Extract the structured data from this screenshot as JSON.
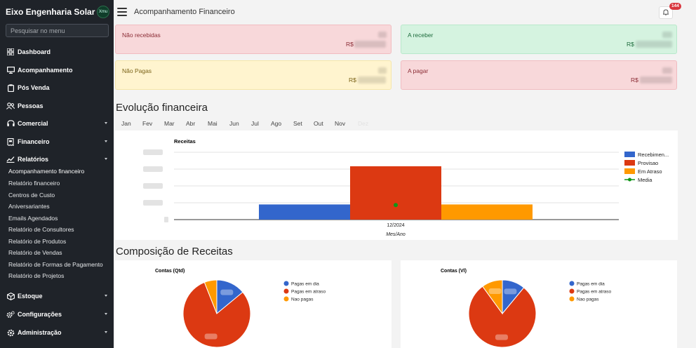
{
  "sidebar": {
    "brand": "Eixo Engenharia Solar",
    "logo_text": "Xmu",
    "search_placeholder": "Pesquisar no menu",
    "items": [
      {
        "label": "Dashboard",
        "icon": "dashboard-icon"
      },
      {
        "label": "Acompanhamento",
        "icon": "monitor-icon"
      },
      {
        "label": "Pós Venda",
        "icon": "clipboard-icon"
      },
      {
        "label": "Pessoas",
        "icon": "people-icon"
      },
      {
        "label": "Comercial",
        "icon": "headset-icon",
        "expandable": true
      },
      {
        "label": "Financeiro",
        "icon": "receipt-icon",
        "expandable": true
      },
      {
        "label": "Relatórios",
        "icon": "chart-line-icon",
        "expandable": true,
        "expanded": true
      },
      {
        "label": "Estoque",
        "icon": "box-icon",
        "expandable": true
      },
      {
        "label": "Configurações",
        "icon": "gears-icon",
        "expandable": true
      },
      {
        "label": "Administração",
        "icon": "gear-icon",
        "expandable": true
      }
    ],
    "sub_items": [
      "Acompanhamento financeiro",
      "Relatório financeiro",
      "Centros de Custo",
      "Aniversariantes",
      "Emails Agendados",
      "Relatório de Consultores",
      "Relatório de Produtos",
      "Relatório de Vendas",
      "Relatório de Formas de Pagamento",
      "Relatório de Projetos"
    ]
  },
  "header": {
    "title": "Acompanhamento Financeiro",
    "notification_count": "144"
  },
  "cards": [
    {
      "label": "Não recebidas",
      "currency": "R$"
    },
    {
      "label": "A receber",
      "currency": "R$"
    },
    {
      "label": "Não Pagas",
      "currency": "R$"
    },
    {
      "label": "A pagar",
      "currency": "R$"
    }
  ],
  "sections": {
    "evolution": "Evolução financeira",
    "composition": "Composição de Receitas"
  },
  "months": [
    "Jan",
    "Fev",
    "Mar",
    "Abr",
    "Mai",
    "Jun",
    "Jul",
    "Ago",
    "Set",
    "Out",
    "Nov",
    "Dez"
  ],
  "colors": {
    "recebimento": "#3366cc",
    "provisao": "#dc3912",
    "atraso": "#ff9900",
    "media": "#109618"
  },
  "chart_data": [
    {
      "type": "bar",
      "title": "Receitas",
      "xlabel": "Mes/Ano",
      "categories": [
        "12/2024"
      ],
      "series": [
        {
          "name": "Recebimen...",
          "values": [
            0.27
          ]
        },
        {
          "name": "Provisao",
          "values": [
            0.95
          ]
        },
        {
          "name": "Em Atraso",
          "values": [
            0.27
          ]
        }
      ],
      "line_series": {
        "name": "Media",
        "values": [
          0.26
        ]
      },
      "ylim": [
        0,
        1.2
      ],
      "legend": "right",
      "grid": true
    },
    {
      "type": "pie",
      "title": "Contas (Qtd)",
      "labels": [
        "Pagas em dia",
        "Pagas em atraso",
        "Nao pagas"
      ],
      "values": [
        14,
        80,
        6
      ],
      "legend": "right"
    },
    {
      "type": "pie",
      "title": "Contas (Vl)",
      "labels": [
        "Pagas em dia",
        "Pagas em atraso",
        "Nao pagas"
      ],
      "values": [
        11,
        79,
        10
      ],
      "legend": "right"
    }
  ]
}
